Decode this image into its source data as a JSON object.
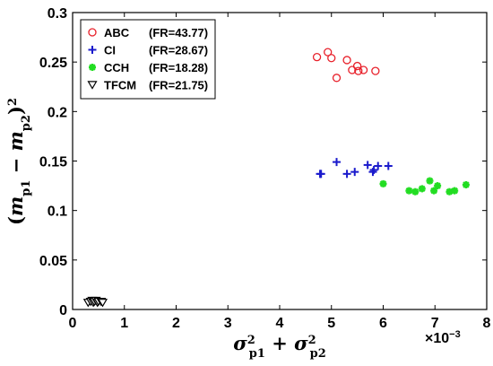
{
  "chart_data": {
    "type": "scatter",
    "xlabel": "σ²p1 + σ²p2",
    "xlabel_parts": {
      "sigma": "σ",
      "sup": "2",
      "sub1": "p1",
      "plus": " + ",
      "sub2": "p2"
    },
    "ylabel": "(mp1 − mp2)²",
    "ylabel_parts": {
      "open": "(",
      "m": "m",
      "sub1": "p1",
      "minus": " − ",
      "sub2": "p2",
      "close": ")",
      "sup": "2"
    },
    "x_exponent": {
      "base": "×10",
      "exp": "−3"
    },
    "xlim": [
      0,
      8
    ],
    "ylim": [
      0,
      0.3
    ],
    "x_ticks": [
      0,
      1,
      2,
      3,
      4,
      5,
      6,
      7,
      8
    ],
    "x_tick_labels": [
      "0",
      "1",
      "2",
      "3",
      "4",
      "5",
      "6",
      "7",
      "8"
    ],
    "y_ticks": [
      0,
      0.05,
      0.1,
      0.15,
      0.2,
      0.25,
      0.3
    ],
    "y_tick_labels": [
      "0",
      "0.05",
      "0.1",
      "0.15",
      "0.2",
      "0.25",
      "0.3"
    ],
    "grid": false,
    "legend_position": "top-left",
    "series": [
      {
        "name": "ABC",
        "fr": "(FR=43.77)",
        "marker": "circle",
        "color": "#e8202a",
        "x": [
          4.72,
          4.93,
          5.0,
          5.1,
          5.3,
          5.4,
          5.5,
          5.52,
          5.62,
          5.85
        ],
        "y": [
          0.255,
          0.26,
          0.254,
          0.234,
          0.252,
          0.242,
          0.246,
          0.241,
          0.242,
          0.241
        ]
      },
      {
        "name": "CI",
        "fr": "(FR=28.67)",
        "marker": "plus",
        "color": "#1a1acc",
        "x": [
          4.78,
          4.8,
          5.1,
          5.3,
          5.45,
          5.7,
          5.8,
          5.82,
          5.9,
          6.1
        ],
        "y": [
          0.137,
          0.137,
          0.149,
          0.137,
          0.139,
          0.146,
          0.139,
          0.141,
          0.145,
          0.145
        ]
      },
      {
        "name": "CCH",
        "fr": "(FR=18.28)",
        "marker": "asterisk",
        "color": "#22dd22",
        "x": [
          6.0,
          6.5,
          6.62,
          6.75,
          6.9,
          6.98,
          7.05,
          7.28,
          7.38,
          7.6
        ],
        "y": [
          0.127,
          0.12,
          0.119,
          0.122,
          0.13,
          0.12,
          0.125,
          0.119,
          0.12,
          0.126
        ]
      },
      {
        "name": "TFCM",
        "fr": "(FR=21.75)",
        "marker": "triangle-down",
        "color": "#000000",
        "x": [
          0.3,
          0.35,
          0.38,
          0.4,
          0.42,
          0.45,
          0.48,
          0.5,
          0.55,
          0.58
        ],
        "y": [
          0.007,
          0.008,
          0.009,
          0.007,
          0.008,
          0.009,
          0.007,
          0.008,
          0.008,
          0.007
        ]
      }
    ]
  }
}
